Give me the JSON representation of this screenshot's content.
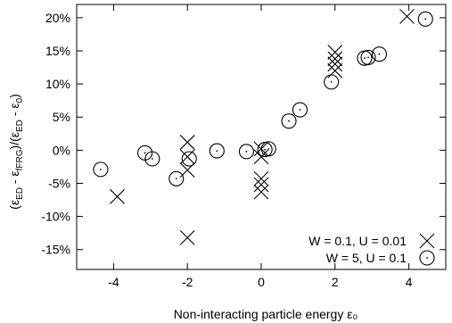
{
  "chart_data": {
    "type": "scatter",
    "title": "",
    "xlabel": "Non-interacting particle energy ε₀",
    "ylabel": "(εED - εfFRG)/(εED - ε0)",
    "ylabel_parts": {
      "open": "(ε",
      "ed1": "ED",
      "minus1": " - ε",
      "frg": "fFRG",
      "close1": ")/(ε",
      "ed2": "ED",
      "minus2": " - ε",
      "zero": "0",
      "close2": ")"
    },
    "xlim": [
      -5,
      5
    ],
    "ylim": [
      -18,
      22
    ],
    "x_ticks": [
      -4,
      -2,
      0,
      2,
      4
    ],
    "x_tick_labels": [
      "-4",
      "-2",
      "0",
      "2",
      "4"
    ],
    "y_ticks": [
      -15,
      -10,
      -5,
      0,
      5,
      10,
      15,
      20
    ],
    "y_tick_labels": [
      "-15%",
      "-10%",
      "-5%",
      "0%",
      "5%",
      "10%",
      "15%",
      "20%"
    ],
    "grid": false,
    "legend_position": "bottom-right",
    "series": [
      {
        "name": "W = 0.1, U = 0.01",
        "marker": "cross",
        "points": [
          [
            -3.9,
            -7
          ],
          [
            -2.0,
            1.2
          ],
          [
            -2.0,
            -1.0
          ],
          [
            -2.0,
            -3.0
          ],
          [
            -2.0,
            -13.2
          ],
          [
            0.0,
            0.2
          ],
          [
            0.0,
            -1.0
          ],
          [
            0.0,
            -4.3
          ],
          [
            0.0,
            -5.2
          ],
          [
            0.0,
            -6.3
          ],
          [
            2.0,
            14.8
          ],
          [
            2.0,
            13.8
          ],
          [
            2.0,
            13.0
          ],
          [
            2.0,
            12.0
          ],
          [
            3.95,
            20.2
          ]
        ]
      },
      {
        "name": "W = 5, U = 0.1",
        "marker": "circle-dot",
        "points": [
          [
            -4.35,
            -2.9
          ],
          [
            -3.15,
            -0.4
          ],
          [
            -2.95,
            -1.3
          ],
          [
            -2.3,
            -4.3
          ],
          [
            -1.95,
            -1.3
          ],
          [
            -1.2,
            -0.1
          ],
          [
            -0.4,
            -0.2
          ],
          [
            0.1,
            0.1
          ],
          [
            0.2,
            0.2
          ],
          [
            0.75,
            4.4
          ],
          [
            1.05,
            6.1
          ],
          [
            1.9,
            10.3
          ],
          [
            2.8,
            13.9
          ],
          [
            2.9,
            14.0
          ],
          [
            3.2,
            14.5
          ],
          [
            4.45,
            19.8
          ]
        ]
      }
    ]
  }
}
